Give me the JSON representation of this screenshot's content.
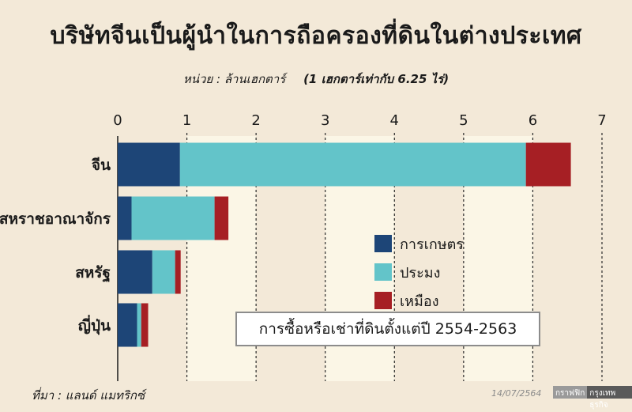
{
  "title": "บริษัทจีนเป็นผู้นำในการถือครองที่ดินในต่างประเทศ",
  "unit_note": "หน่วย : ล้านเฮกตาร์",
  "conversion_note": "(1 เฮกตาร์เท่ากับ 6.25 ไร่)",
  "source": "ที่มา : แลนด์ แมทริกซ์",
  "date": "14/07/2564",
  "credit": {
    "part1": "กราฟฟิก",
    "part2": "กรุงเทพธุรกิจ"
  },
  "note_box": "การซื้อหรือเช่าที่ดินตั้งแต่ปี 2554-2563",
  "chart_data": {
    "type": "bar",
    "orientation": "horizontal",
    "stacked": true,
    "categories": [
      "จีน",
      "สหราชอาณาจักร",
      "สหรัฐ",
      "ญี่ปุ่น"
    ],
    "series": [
      {
        "name": "การเกษตร",
        "color": "#1d4577",
        "values": [
          0.9,
          0.2,
          0.5,
          0.28
        ]
      },
      {
        "name": "ประมง",
        "color": "#63c4c9",
        "values": [
          5.0,
          1.2,
          0.33,
          0.06
        ]
      },
      {
        "name": "เหมือง",
        "color": "#a61f24",
        "values": [
          0.65,
          0.2,
          0.08,
          0.1
        ]
      }
    ],
    "xlim": [
      0,
      7
    ],
    "xticks": [
      "0",
      "1",
      "2",
      "3",
      "4",
      "5",
      "6",
      "7"
    ],
    "grid": true,
    "legend_position": "right-middle"
  }
}
